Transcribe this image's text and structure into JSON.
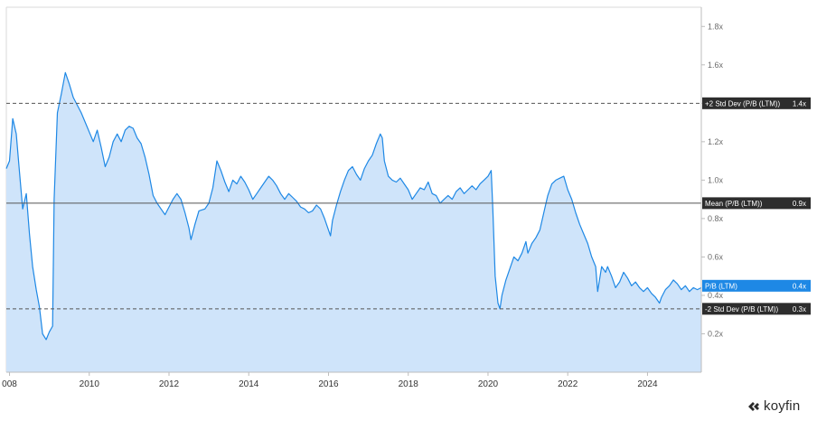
{
  "logo": {
    "text": "koyfin"
  },
  "chart_data": {
    "type": "area",
    "x_ticks": [
      "008",
      "2010",
      "2012",
      "2014",
      "2016",
      "2018",
      "2020",
      "2022",
      "2024"
    ],
    "y_ticks": [
      "0.2x",
      "0.4x",
      "0.6x",
      "0.8x",
      "1.0x",
      "1.2x",
      "1.4x",
      "1.6x",
      "1.8x"
    ],
    "ylim": [
      0.0,
      1.9
    ],
    "xlim": [
      2007.92,
      2025.35
    ],
    "series": [
      {
        "name": "P/B (LTM)",
        "color": "#1e88e5",
        "fill": "#cfe4fa",
        "points": [
          [
            2007.92,
            1.06
          ],
          [
            2008.0,
            1.1
          ],
          [
            2008.08,
            1.32
          ],
          [
            2008.17,
            1.24
          ],
          [
            2008.25,
            1.04
          ],
          [
            2008.33,
            0.85
          ],
          [
            2008.42,
            0.93
          ],
          [
            2008.5,
            0.72
          ],
          [
            2008.58,
            0.55
          ],
          [
            2008.67,
            0.43
          ],
          [
            2008.75,
            0.34
          ],
          [
            2008.83,
            0.2
          ],
          [
            2008.92,
            0.17
          ],
          [
            2009.0,
            0.21
          ],
          [
            2009.08,
            0.24
          ],
          [
            2009.12,
            0.9
          ],
          [
            2009.2,
            1.35
          ],
          [
            2009.3,
            1.45
          ],
          [
            2009.4,
            1.56
          ],
          [
            2009.5,
            1.5
          ],
          [
            2009.6,
            1.43
          ],
          [
            2009.7,
            1.39
          ],
          [
            2009.8,
            1.35
          ],
          [
            2009.9,
            1.3
          ],
          [
            2010.0,
            1.25
          ],
          [
            2010.1,
            1.2
          ],
          [
            2010.2,
            1.26
          ],
          [
            2010.3,
            1.17
          ],
          [
            2010.4,
            1.07
          ],
          [
            2010.5,
            1.12
          ],
          [
            2010.6,
            1.2
          ],
          [
            2010.7,
            1.24
          ],
          [
            2010.8,
            1.2
          ],
          [
            2010.9,
            1.26
          ],
          [
            2011.0,
            1.28
          ],
          [
            2011.1,
            1.27
          ],
          [
            2011.2,
            1.22
          ],
          [
            2011.3,
            1.19
          ],
          [
            2011.4,
            1.12
          ],
          [
            2011.5,
            1.03
          ],
          [
            2011.6,
            0.92
          ],
          [
            2011.7,
            0.88
          ],
          [
            2011.8,
            0.85
          ],
          [
            2011.9,
            0.82
          ],
          [
            2012.0,
            0.86
          ],
          [
            2012.1,
            0.9
          ],
          [
            2012.2,
            0.93
          ],
          [
            2012.3,
            0.9
          ],
          [
            2012.4,
            0.83
          ],
          [
            2012.5,
            0.75
          ],
          [
            2012.55,
            0.69
          ],
          [
            2012.65,
            0.77
          ],
          [
            2012.75,
            0.84
          ],
          [
            2012.9,
            0.85
          ],
          [
            2013.0,
            0.88
          ],
          [
            2013.1,
            0.96
          ],
          [
            2013.2,
            1.1
          ],
          [
            2013.3,
            1.05
          ],
          [
            2013.4,
            0.99
          ],
          [
            2013.5,
            0.94
          ],
          [
            2013.6,
            1.0
          ],
          [
            2013.7,
            0.98
          ],
          [
            2013.8,
            1.02
          ],
          [
            2013.9,
            0.99
          ],
          [
            2014.0,
            0.95
          ],
          [
            2014.1,
            0.9
          ],
          [
            2014.2,
            0.93
          ],
          [
            2014.3,
            0.96
          ],
          [
            2014.4,
            0.99
          ],
          [
            2014.5,
            1.02
          ],
          [
            2014.6,
            1.0
          ],
          [
            2014.7,
            0.97
          ],
          [
            2014.8,
            0.93
          ],
          [
            2014.9,
            0.9
          ],
          [
            2015.0,
            0.93
          ],
          [
            2015.1,
            0.91
          ],
          [
            2015.2,
            0.89
          ],
          [
            2015.3,
            0.86
          ],
          [
            2015.4,
            0.85
          ],
          [
            2015.5,
            0.83
          ],
          [
            2015.6,
            0.84
          ],
          [
            2015.7,
            0.87
          ],
          [
            2015.8,
            0.85
          ],
          [
            2015.9,
            0.8
          ],
          [
            2016.0,
            0.74
          ],
          [
            2016.05,
            0.71
          ],
          [
            2016.1,
            0.79
          ],
          [
            2016.2,
            0.87
          ],
          [
            2016.3,
            0.94
          ],
          [
            2016.4,
            1.0
          ],
          [
            2016.5,
            1.05
          ],
          [
            2016.6,
            1.07
          ],
          [
            2016.7,
            1.03
          ],
          [
            2016.8,
            1.0
          ],
          [
            2016.9,
            1.06
          ],
          [
            2017.0,
            1.1
          ],
          [
            2017.1,
            1.13
          ],
          [
            2017.2,
            1.19
          ],
          [
            2017.3,
            1.24
          ],
          [
            2017.35,
            1.22
          ],
          [
            2017.4,
            1.1
          ],
          [
            2017.5,
            1.02
          ],
          [
            2017.6,
            1.0
          ],
          [
            2017.7,
            0.99
          ],
          [
            2017.8,
            1.01
          ],
          [
            2017.9,
            0.98
          ],
          [
            2018.0,
            0.95
          ],
          [
            2018.1,
            0.9
          ],
          [
            2018.2,
            0.93
          ],
          [
            2018.3,
            0.96
          ],
          [
            2018.4,
            0.95
          ],
          [
            2018.5,
            0.99
          ],
          [
            2018.6,
            0.93
          ],
          [
            2018.7,
            0.92
          ],
          [
            2018.8,
            0.88
          ],
          [
            2018.9,
            0.9
          ],
          [
            2019.0,
            0.92
          ],
          [
            2019.1,
            0.9
          ],
          [
            2019.2,
            0.94
          ],
          [
            2019.3,
            0.96
          ],
          [
            2019.4,
            0.93
          ],
          [
            2019.5,
            0.95
          ],
          [
            2019.6,
            0.97
          ],
          [
            2019.7,
            0.95
          ],
          [
            2019.8,
            0.98
          ],
          [
            2019.9,
            1.0
          ],
          [
            2020.0,
            1.02
          ],
          [
            2020.08,
            1.05
          ],
          [
            2020.12,
            0.85
          ],
          [
            2020.18,
            0.5
          ],
          [
            2020.25,
            0.36
          ],
          [
            2020.3,
            0.33
          ],
          [
            2020.35,
            0.4
          ],
          [
            2020.45,
            0.48
          ],
          [
            2020.55,
            0.54
          ],
          [
            2020.65,
            0.6
          ],
          [
            2020.75,
            0.58
          ],
          [
            2020.85,
            0.62
          ],
          [
            2020.95,
            0.68
          ],
          [
            2021.0,
            0.62
          ],
          [
            2021.1,
            0.67
          ],
          [
            2021.2,
            0.7
          ],
          [
            2021.3,
            0.74
          ],
          [
            2021.4,
            0.83
          ],
          [
            2021.5,
            0.92
          ],
          [
            2021.6,
            0.98
          ],
          [
            2021.7,
            1.0
          ],
          [
            2021.8,
            1.01
          ],
          [
            2021.9,
            1.02
          ],
          [
            2022.0,
            0.95
          ],
          [
            2022.1,
            0.9
          ],
          [
            2022.2,
            0.83
          ],
          [
            2022.3,
            0.77
          ],
          [
            2022.4,
            0.72
          ],
          [
            2022.5,
            0.67
          ],
          [
            2022.6,
            0.6
          ],
          [
            2022.7,
            0.55
          ],
          [
            2022.75,
            0.42
          ],
          [
            2022.85,
            0.55
          ],
          [
            2022.95,
            0.52
          ],
          [
            2023.0,
            0.55
          ],
          [
            2023.1,
            0.5
          ],
          [
            2023.2,
            0.44
          ],
          [
            2023.3,
            0.47
          ],
          [
            2023.4,
            0.52
          ],
          [
            2023.5,
            0.49
          ],
          [
            2023.6,
            0.45
          ],
          [
            2023.7,
            0.47
          ],
          [
            2023.8,
            0.44
          ],
          [
            2023.9,
            0.42
          ],
          [
            2024.0,
            0.44
          ],
          [
            2024.1,
            0.41
          ],
          [
            2024.2,
            0.39
          ],
          [
            2024.3,
            0.36
          ],
          [
            2024.35,
            0.39
          ],
          [
            2024.45,
            0.43
          ],
          [
            2024.55,
            0.45
          ],
          [
            2024.65,
            0.48
          ],
          [
            2024.75,
            0.46
          ],
          [
            2024.85,
            0.43
          ],
          [
            2024.95,
            0.45
          ],
          [
            2025.05,
            0.42
          ],
          [
            2025.15,
            0.44
          ],
          [
            2025.25,
            0.43
          ],
          [
            2025.35,
            0.44
          ]
        ]
      }
    ],
    "reference_lines": [
      {
        "label": "+2 Std Dev (P/B (LTM))",
        "value_text": "1.4x",
        "y": 1.4,
        "style": "dashed"
      },
      {
        "label": "Mean (P/B (LTM))",
        "value_text": "0.9x",
        "y": 0.88,
        "style": "solid"
      },
      {
        "label": "P/B (LTM)",
        "value_text": "0.4x",
        "y": 0.45,
        "style": "current"
      },
      {
        "label": "-2 Std Dev (P/B (LTM))",
        "value_text": "0.3x",
        "y": 0.33,
        "style": "dashed"
      }
    ],
    "colors": {
      "line": "#1e88e5",
      "fill": "#cfe4fa",
      "reference_line": "#555555",
      "label_bg": "#2d2d2d",
      "current_bg": "#1e88e5"
    }
  }
}
